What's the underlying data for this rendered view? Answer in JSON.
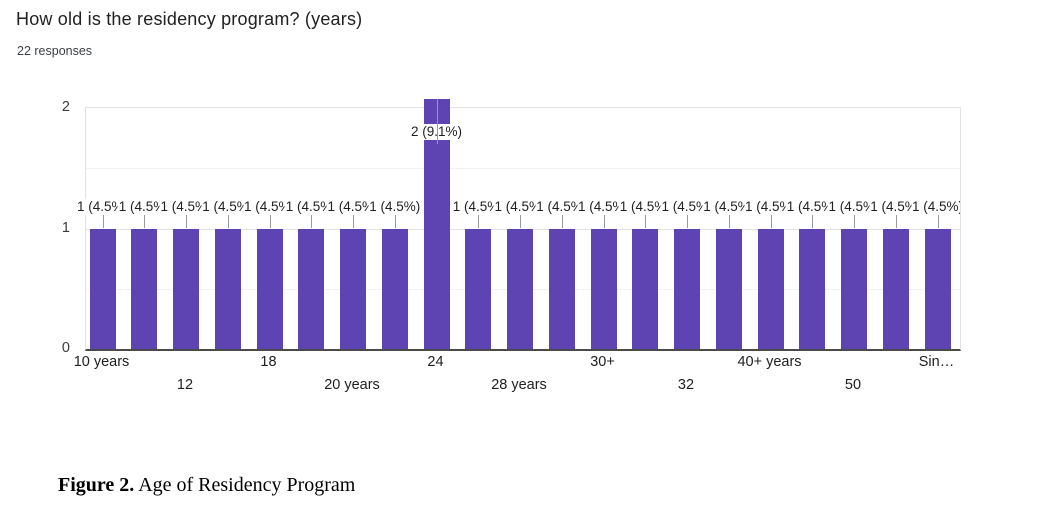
{
  "header": {
    "title": "How old is the residency program? (years)",
    "subtitle": "22 responses"
  },
  "chart_data": {
    "type": "bar",
    "title": "How old is the residency program? (years)",
    "subtitle": "22 responses",
    "total_responses": 22,
    "categories": [
      "10 years",
      "",
      "12",
      "",
      "18",
      "",
      "20 years",
      "",
      "24",
      "",
      "28 years",
      "",
      "30+",
      "",
      "32",
      "",
      "40+ years",
      "",
      "50",
      "",
      "Sin…"
    ],
    "values": [
      1,
      1,
      1,
      1,
      1,
      1,
      1,
      1,
      2,
      1,
      1,
      1,
      1,
      1,
      1,
      1,
      1,
      1,
      1,
      1,
      1
    ],
    "bar_labels": [
      "1 (4.5%)",
      "1 (4.5%)",
      "1 (4.5%)",
      "1 (4.5%)",
      "1 (4.5%)",
      "1 (4.5%)",
      "1 (4.5%)",
      "1 (4.5%)",
      "2 (9.1%)",
      "1 (4.5%)",
      "1 (4.5%)",
      "1 (4.5%)",
      "1 (4.5%)",
      "1 (4.5%)",
      "1 (4.5%)",
      "1 (4.5%)",
      "1 (4.5%)",
      "1 (4.5%)",
      "1 (4.5%)",
      "1 (4.5%)",
      "1 (4.5%)"
    ],
    "xlabel": "",
    "ylabel": "",
    "yticks": [
      0,
      1,
      2
    ],
    "ylim": [
      0,
      2
    ],
    "grid": true,
    "legend": "none",
    "bar_color": "#5e44b2"
  },
  "caption": {
    "label": "Figure 2.",
    "text": " Age of Residency Program"
  }
}
